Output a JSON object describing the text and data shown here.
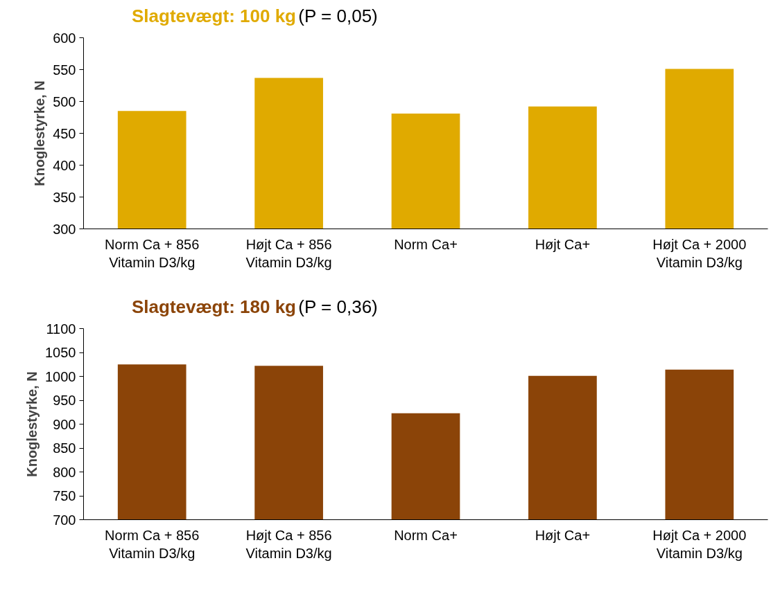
{
  "chart_data": [
    {
      "type": "bar",
      "title": "Slagtevægt: 100 kg",
      "subtitle": "(P = 0,05)",
      "ylabel": "Knoglestyrke, N",
      "categories": [
        "Norm Ca + 856 Vitamin D3/kg",
        "Højt Ca + 856 Vitamin D3/kg",
        "Norm Ca+",
        "Højt Ca+",
        "Højt Ca + 2000 Vitamin D3/kg"
      ],
      "values": [
        485,
        537,
        481,
        492,
        551
      ],
      "color": "#e0aa00",
      "ylim": [
        300,
        600
      ],
      "yticks": [
        300,
        350,
        400,
        450,
        500,
        550,
        600
      ],
      "grid": false
    },
    {
      "type": "bar",
      "title": "Slagtevægt: 180 kg",
      "subtitle": "(P = 0,36)",
      "ylabel": "Knoglestyrke, N",
      "categories": [
        "Norm Ca + 856 Vitamin D3/kg",
        "Højt Ca + 856 Vitamin D3/kg",
        "Norm Ca+",
        "Højt Ca+",
        "Højt Ca + 2000 Vitamin D3/kg"
      ],
      "values": [
        1025,
        1022,
        923,
        1001,
        1014
      ],
      "color": "#8b4408",
      "ylim": [
        700,
        1100
      ],
      "yticks": [
        700,
        750,
        800,
        850,
        900,
        950,
        1000,
        1050,
        1100
      ],
      "grid": false
    }
  ]
}
